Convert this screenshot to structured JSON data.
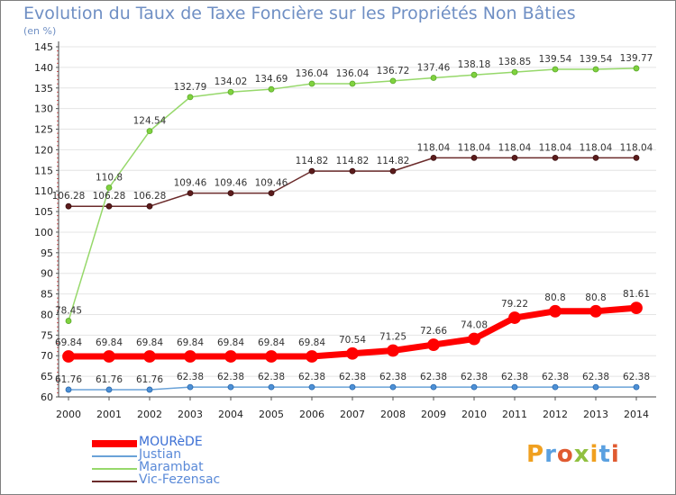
{
  "title": "Evolution du Taux de Taxe Foncière sur les Propriétés Non Bâties",
  "subtitle": "(en %)",
  "logo_text": "Proxiti",
  "chart_data": {
    "type": "line",
    "title": "Evolution du Taux de Taxe Foncière sur les Propriétés Non Bâties",
    "ylabel": "(en %)",
    "xlabel": "",
    "ylim": [
      60,
      145
    ],
    "yticks": [
      60,
      65,
      70,
      75,
      80,
      85,
      90,
      95,
      100,
      105,
      110,
      115,
      120,
      125,
      130,
      135,
      140,
      145
    ],
    "x": [
      "2000",
      "2001",
      "2002",
      "2003",
      "2004",
      "2005",
      "2006",
      "2007",
      "2008",
      "2009",
      "2010",
      "2011",
      "2012",
      "2013",
      "2014"
    ],
    "series": [
      {
        "name": "MOURèDE",
        "color": "#ff0000",
        "values": [
          69.84,
          69.84,
          69.84,
          69.84,
          69.84,
          69.84,
          69.84,
          70.54,
          71.25,
          72.66,
          74.08,
          79.22,
          80.8,
          80.8,
          81.61
        ],
        "labels": [
          "69.84",
          "69.84",
          "69.84",
          "69.84",
          "69.84",
          "69.84",
          "69.84",
          "70.54",
          "71.25",
          "72.66",
          "74.08",
          "79.22",
          "80.8",
          "80.8",
          "81.61"
        ]
      },
      {
        "name": "Justian",
        "color": "#6aa2d8",
        "values": [
          61.76,
          61.76,
          61.76,
          62.38,
          62.38,
          62.38,
          62.38,
          62.38,
          62.38,
          62.38,
          62.38,
          62.38,
          62.38,
          62.38,
          62.38
        ],
        "labels": [
          "61.76",
          "61.76",
          "61.76",
          "62.38",
          "62.38",
          "62.38",
          "62.38",
          "62.38",
          "62.38",
          "62.38",
          "62.38",
          "62.38",
          "62.38",
          "62.38",
          "62.38"
        ]
      },
      {
        "name": "Marambat",
        "color": "#96d86a",
        "values": [
          78.45,
          110.8,
          124.54,
          132.79,
          134.02,
          134.69,
          136.04,
          136.04,
          136.72,
          137.46,
          138.18,
          138.85,
          139.54,
          139.54,
          139.77
        ],
        "labels": [
          "78.45",
          "110.8",
          "124.54",
          "132.79",
          "134.02",
          "134.69",
          "136.04",
          "136.04",
          "136.72",
          "137.46",
          "138.18",
          "138.85",
          "139.54",
          "139.54",
          "139.77"
        ]
      },
      {
        "name": "Vic-Fezensac",
        "color": "#6b2b2b",
        "values": [
          106.28,
          106.28,
          106.28,
          109.46,
          109.46,
          109.46,
          114.82,
          114.82,
          114.82,
          118.04,
          118.04,
          118.04,
          118.04,
          118.04,
          118.04
        ],
        "labels": [
          "106.28",
          "106.28",
          "106.28",
          "109.46",
          "109.46",
          "109.46",
          "114.82",
          "114.82",
          "114.82",
          "118.04",
          "118.04",
          "118.04",
          "118.04",
          "118.04",
          "118.04"
        ]
      }
    ],
    "legend": [
      "MOURèDE",
      "Justian",
      "Marambat",
      "Vic-Fezensac"
    ]
  }
}
